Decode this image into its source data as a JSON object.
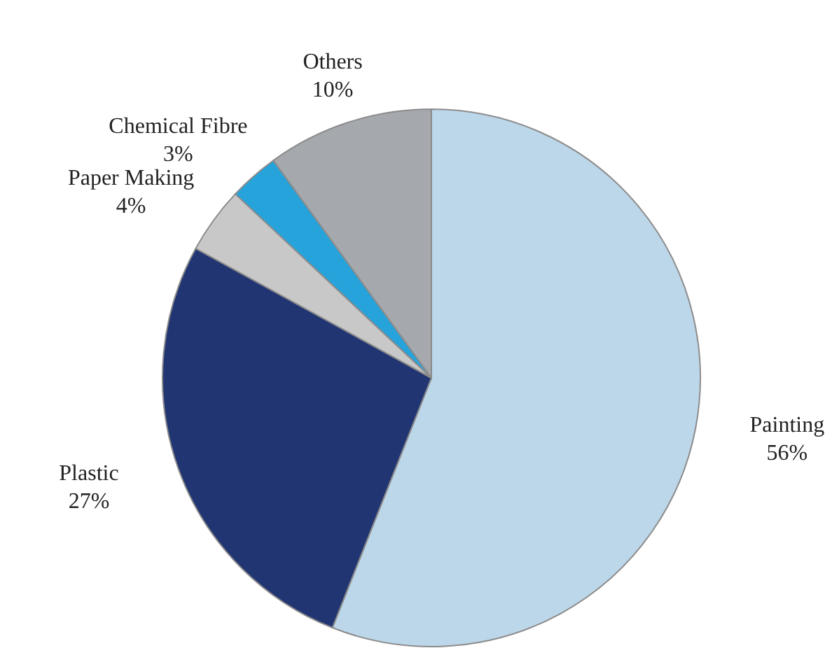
{
  "chart_data": {
    "type": "pie",
    "categories": [
      "Painting",
      "Plastic",
      "Paper Making",
      "Chemical Fibre",
      "Others"
    ],
    "values": [
      56,
      27,
      4,
      3,
      10
    ],
    "value_labels": [
      "56%",
      "27%",
      "4%",
      "3%",
      "10%"
    ],
    "colors": [
      "#bdd7ea",
      "#213572",
      "#c8c8c8",
      "#26a3db",
      "#a5a8ad"
    ]
  }
}
